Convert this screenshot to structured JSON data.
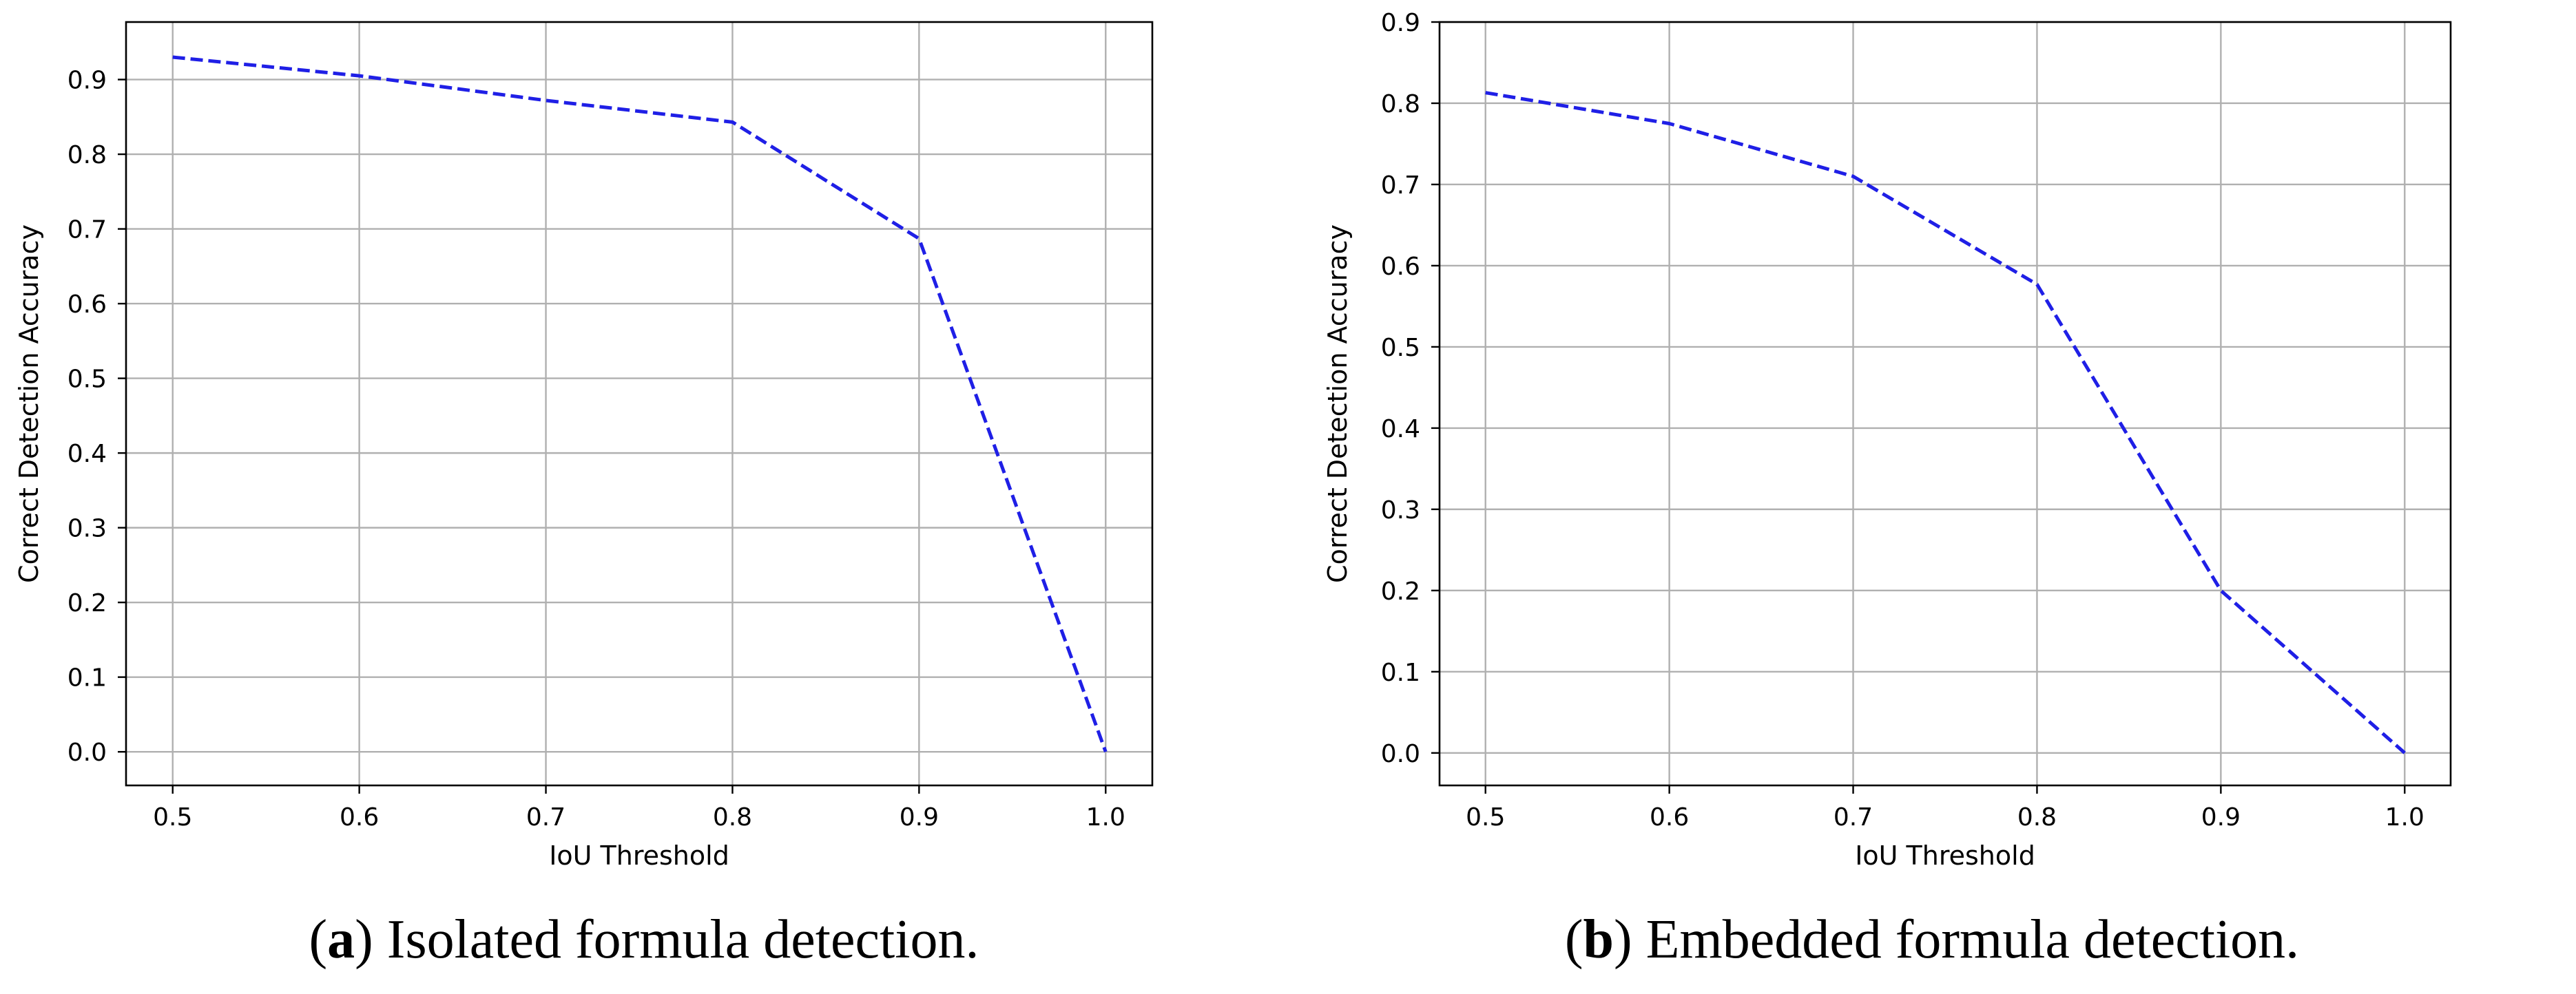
{
  "chart_data": [
    {
      "id": "a",
      "type": "line",
      "xlabel": "IoU Threshold",
      "ylabel": "Correct Detection Accuracy",
      "x": [
        0.5,
        0.6,
        0.7,
        0.8,
        0.9,
        1.0
      ],
      "series": [
        {
          "name": "accuracy",
          "values": [
            0.93,
            0.905,
            0.872,
            0.843,
            0.687,
            0.0
          ],
          "color": "#1f1fe6",
          "linestyle": "dashed"
        }
      ],
      "xlim": [
        0.475,
        1.025
      ],
      "ylim": [
        -0.045,
        0.977
      ],
      "xticks": [
        "0.5",
        "0.6",
        "0.7",
        "0.8",
        "0.9",
        "1.0"
      ],
      "yticks": [
        "0.0",
        "0.1",
        "0.2",
        "0.3",
        "0.4",
        "0.5",
        "0.6",
        "0.7",
        "0.8",
        "0.9"
      ],
      "grid": true,
      "caption_label": "a",
      "caption_open": "(",
      "caption_text": ") Isolated formula detection."
    },
    {
      "id": "b",
      "type": "line",
      "xlabel": "IoU Threshold",
      "ylabel": "Correct Detection Accuracy",
      "x": [
        0.5,
        0.6,
        0.7,
        0.8,
        0.9,
        1.0
      ],
      "series": [
        {
          "name": "accuracy",
          "values": [
            0.813,
            0.775,
            0.71,
            0.577,
            0.2,
            0.0
          ],
          "color": "#1f1fe6",
          "linestyle": "dashed"
        }
      ],
      "xlim": [
        0.475,
        1.025
      ],
      "ylim": [
        -0.04,
        0.9
      ],
      "xticks": [
        "0.5",
        "0.6",
        "0.7",
        "0.8",
        "0.9",
        "1.0"
      ],
      "yticks": [
        "0.0",
        "0.1",
        "0.2",
        "0.3",
        "0.4",
        "0.5",
        "0.6",
        "0.7",
        "0.8",
        "0.9"
      ],
      "grid": true,
      "caption_label": "b",
      "caption_open": "(",
      "caption_text": ") Embedded formula detection."
    }
  ]
}
